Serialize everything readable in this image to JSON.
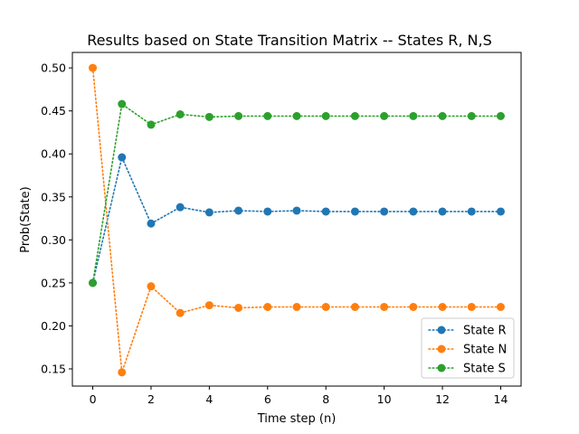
{
  "chart_data": {
    "type": "line",
    "title": "Results based on State Transition Matrix -- States R, N,S",
    "xlabel": "Time step (n)",
    "ylabel": "Prob(State)",
    "xlim": [
      -0.7,
      14.7
    ],
    "ylim": [
      0.13,
      0.518
    ],
    "xticks": [
      0,
      2,
      4,
      6,
      8,
      10,
      12,
      14
    ],
    "xtick_labels": [
      "0",
      "2",
      "4",
      "6",
      "8",
      "10",
      "12",
      "14"
    ],
    "yticks": [
      0.15,
      0.2,
      0.25,
      0.3,
      0.35,
      0.4,
      0.45,
      0.5
    ],
    "ytick_labels": [
      "0.15",
      "0.20",
      "0.25",
      "0.30",
      "0.35",
      "0.40",
      "0.45",
      "0.50"
    ],
    "grid": false,
    "legend_position": "bottom-right",
    "x": [
      0,
      1,
      2,
      3,
      4,
      5,
      6,
      7,
      8,
      9,
      10,
      11,
      12,
      13,
      14
    ],
    "series": [
      {
        "name": "State R",
        "color": "#1f77b4",
        "values": [
          0.25,
          0.396,
          0.319,
          0.338,
          0.332,
          0.334,
          0.333,
          0.334,
          0.333,
          0.333,
          0.333,
          0.333,
          0.333,
          0.333,
          0.333
        ]
      },
      {
        "name": "State N",
        "color": "#ff7f0e",
        "values": [
          0.5,
          0.146,
          0.246,
          0.215,
          0.224,
          0.221,
          0.222,
          0.222,
          0.222,
          0.222,
          0.222,
          0.222,
          0.222,
          0.222,
          0.222
        ]
      },
      {
        "name": "State S",
        "color": "#2ca02c",
        "values": [
          0.25,
          0.458,
          0.434,
          0.446,
          0.443,
          0.444,
          0.444,
          0.444,
          0.444,
          0.444,
          0.444,
          0.444,
          0.444,
          0.444,
          0.444
        ]
      }
    ]
  }
}
